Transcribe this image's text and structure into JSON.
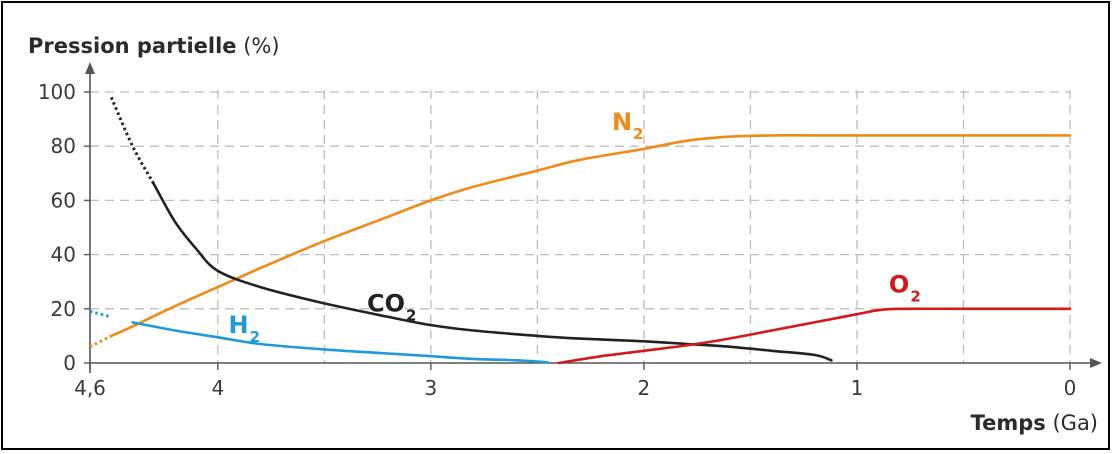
{
  "chart_data": {
    "type": "line",
    "ylabel": {
      "name": "Pression partielle",
      "unit": "(%)"
    },
    "xlabel": {
      "name": "Temps",
      "unit": "(Ga)"
    },
    "x_reversed": true,
    "xlim": [
      4.6,
      0
    ],
    "ylim": [
      0,
      100
    ],
    "x_ticks": [
      {
        "value": 4.6,
        "label": "4,6"
      },
      {
        "value": 4,
        "label": "4"
      },
      {
        "value": 3,
        "label": "3"
      },
      {
        "value": 2,
        "label": "2"
      },
      {
        "value": 1,
        "label": "1"
      },
      {
        "value": 0,
        "label": "0"
      }
    ],
    "x_grid": [
      4,
      3.5,
      3,
      2.5,
      2,
      1.5,
      1,
      0.5
    ],
    "y_ticks": [
      0,
      20,
      40,
      60,
      80,
      100
    ],
    "grid": "dashed",
    "series": [
      {
        "name": "N",
        "subscript": "2",
        "color": "#ef8a17",
        "dotted_until": 4.5,
        "points": [
          [
            4.6,
            6
          ],
          [
            4.5,
            10
          ],
          [
            4.4,
            13.5
          ],
          [
            4.2,
            21
          ],
          [
            4,
            28
          ],
          [
            3.8,
            35
          ],
          [
            3.5,
            45
          ],
          [
            3.2,
            54
          ],
          [
            3,
            60
          ],
          [
            2.8,
            65
          ],
          [
            2.5,
            71
          ],
          [
            2.3,
            75
          ],
          [
            2,
            79
          ],
          [
            1.8,
            82
          ],
          [
            1.6,
            83.5
          ],
          [
            1.4,
            84
          ],
          [
            1.2,
            84
          ],
          [
            1,
            84
          ],
          [
            0.8,
            84
          ],
          [
            0.6,
            84
          ],
          [
            0.4,
            84
          ],
          [
            0.2,
            84
          ],
          [
            0,
            84
          ]
        ]
      },
      {
        "name": "CO",
        "subscript": "2",
        "color": "#222222",
        "dotted_until": 4.3,
        "points": [
          [
            4.5,
            98
          ],
          [
            4.4,
            80
          ],
          [
            4.3,
            66
          ],
          [
            4.2,
            52
          ],
          [
            4.1,
            42
          ],
          [
            4,
            34
          ],
          [
            3.8,
            28
          ],
          [
            3.5,
            22
          ],
          [
            3.2,
            17
          ],
          [
            3,
            14
          ],
          [
            2.8,
            12
          ],
          [
            2.5,
            10
          ],
          [
            2.3,
            9
          ],
          [
            2,
            8
          ],
          [
            1.8,
            7
          ],
          [
            1.6,
            6
          ],
          [
            1.4,
            4.5
          ],
          [
            1.2,
            3
          ],
          [
            1.12,
            1
          ]
        ]
      },
      {
        "name": "H",
        "subscript": "2",
        "color": "#1e9ad6",
        "dotted_until": 4.45,
        "points": [
          [
            4.6,
            19
          ],
          [
            4.5,
            17
          ],
          [
            4.4,
            15
          ],
          [
            4.2,
            12
          ],
          [
            4,
            9.5
          ],
          [
            3.8,
            7
          ],
          [
            3.5,
            5
          ],
          [
            3.2,
            3.5
          ],
          [
            3,
            2.5
          ],
          [
            2.8,
            1.5
          ],
          [
            2.6,
            1
          ],
          [
            2.5,
            0.5
          ],
          [
            2.45,
            0.2
          ]
        ]
      },
      {
        "name": "O",
        "subscript": "2",
        "color": "#d4181c",
        "dotted_until": null,
        "points": [
          [
            2.4,
            0
          ],
          [
            2.2,
            2.5
          ],
          [
            2,
            4.5
          ],
          [
            1.8,
            6.5
          ],
          [
            1.6,
            9
          ],
          [
            1.4,
            12
          ],
          [
            1.2,
            15
          ],
          [
            1,
            18
          ],
          [
            0.9,
            19.5
          ],
          [
            0.8,
            20
          ],
          [
            0.5,
            20
          ],
          [
            0.2,
            20
          ],
          [
            0,
            20
          ]
        ]
      }
    ],
    "series_labels": [
      {
        "series": 0,
        "x": 2.15,
        "y": 86
      },
      {
        "series": 1,
        "x": 3.3,
        "y": 19
      },
      {
        "series": 2,
        "x": 3.95,
        "y": 11
      },
      {
        "series": 3,
        "x": 0.85,
        "y": 26
      }
    ]
  }
}
